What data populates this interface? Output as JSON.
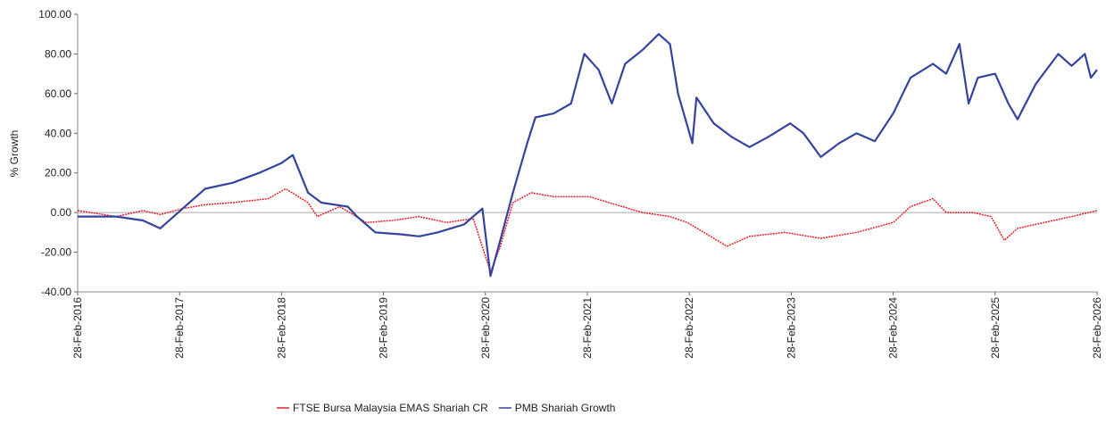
{
  "chart_data": {
    "type": "line",
    "y_label": "% Growth",
    "xlim": [
      2016.16,
      2026.16
    ],
    "xticks": [
      {
        "value": 2016.16,
        "label": "28-Feb-2016"
      },
      {
        "value": 2017.16,
        "label": "28-Feb-2017"
      },
      {
        "value": 2018.16,
        "label": "28-Feb-2018"
      },
      {
        "value": 2019.16,
        "label": "28-Feb-2019"
      },
      {
        "value": 2020.16,
        "label": "28-Feb-2020"
      },
      {
        "value": 2021.16,
        "label": "28-Feb-2021"
      },
      {
        "value": 2022.16,
        "label": "28-Feb-2022"
      },
      {
        "value": 2023.16,
        "label": "28-Feb-2023"
      },
      {
        "value": 2024.16,
        "label": "28-Feb-2024"
      },
      {
        "value": 2025.16,
        "label": "28-Feb-2025"
      },
      {
        "value": 2026.16,
        "label": "28-Feb-2026"
      }
    ],
    "ylim": [
      -40,
      100
    ],
    "yticks": [
      {
        "value": -40,
        "label": "-40.00"
      },
      {
        "value": -20,
        "label": "-20.00"
      },
      {
        "value": 0,
        "label": "0.00"
      },
      {
        "value": 20,
        "label": "20.00"
      },
      {
        "value": 40,
        "label": "40.00"
      },
      {
        "value": 60,
        "label": "60.00"
      },
      {
        "value": 80,
        "label": "80.00"
      },
      {
        "value": 100,
        "label": "100.00"
      }
    ],
    "zero_line": true,
    "legend": "bottom",
    "series": [
      {
        "name": "FTSE Bursa Malaysia EMAS Shariah CR",
        "color": "#e8202a",
        "x": [
          2016.16,
          2016.54,
          2016.8,
          2016.97,
          2017.19,
          2017.41,
          2017.68,
          2018.03,
          2018.2,
          2018.42,
          2018.51,
          2018.73,
          2018.99,
          2019.25,
          2019.51,
          2019.78,
          2020.04,
          2020.21,
          2020.3,
          2020.43,
          2020.61,
          2020.83,
          2021.18,
          2021.44,
          2021.7,
          2021.97,
          2022.14,
          2022.4,
          2022.53,
          2022.75,
          2023.1,
          2023.45,
          2023.8,
          2024.16,
          2024.33,
          2024.55,
          2024.68,
          2024.94,
          2025.12,
          2025.25,
          2025.38,
          2025.64,
          2025.91,
          2026.16
        ],
        "values": [
          1,
          -2,
          1,
          -1,
          2,
          4,
          5,
          7,
          12,
          5,
          -2,
          3,
          -5,
          -4,
          -2,
          -5,
          -3,
          -30,
          -18,
          5,
          10,
          8,
          8,
          4,
          0,
          -2,
          -5,
          -13,
          -17,
          -12,
          -10,
          -13,
          -10,
          -5,
          3,
          7,
          0,
          0,
          -2,
          -14,
          -8,
          -5,
          -2,
          1
        ]
      },
      {
        "name": "PMB Shariah Growth",
        "color": "#3543a0",
        "x": [
          2016.16,
          2016.54,
          2016.8,
          2016.97,
          2017.19,
          2017.41,
          2017.68,
          2017.94,
          2018.16,
          2018.27,
          2018.42,
          2018.55,
          2018.81,
          2018.9,
          2019.08,
          2019.34,
          2019.51,
          2019.69,
          2019.95,
          2020.13,
          2020.21,
          2020.3,
          2020.43,
          2020.57,
          2020.65,
          2020.83,
          2021.0,
          2021.13,
          2021.27,
          2021.4,
          2021.53,
          2021.7,
          2021.86,
          2021.97,
          2022.05,
          2022.19,
          2022.23,
          2022.4,
          2022.58,
          2022.75,
          2022.93,
          2023.15,
          2023.28,
          2023.45,
          2023.63,
          2023.8,
          2023.98,
          2024.16,
          2024.33,
          2024.55,
          2024.68,
          2024.81,
          2024.9,
          2024.99,
          2025.16,
          2025.29,
          2025.38,
          2025.56,
          2025.78,
          2025.91,
          2026.04,
          2026.1,
          2026.16
        ],
        "values": [
          -2,
          -2,
          -4,
          -8,
          2,
          12,
          15,
          20,
          25,
          29,
          10,
          5,
          3,
          -2,
          -10,
          -11,
          -12,
          -10,
          -6,
          2,
          -32,
          -15,
          10,
          35,
          48,
          50,
          55,
          80,
          72,
          55,
          75,
          82,
          90,
          85,
          60,
          35,
          58,
          45,
          38,
          33,
          38,
          45,
          40,
          28,
          35,
          40,
          36,
          50,
          68,
          75,
          70,
          85,
          55,
          68,
          70,
          55,
          47,
          65,
          80,
          74,
          80,
          68,
          72
        ]
      }
    ]
  }
}
